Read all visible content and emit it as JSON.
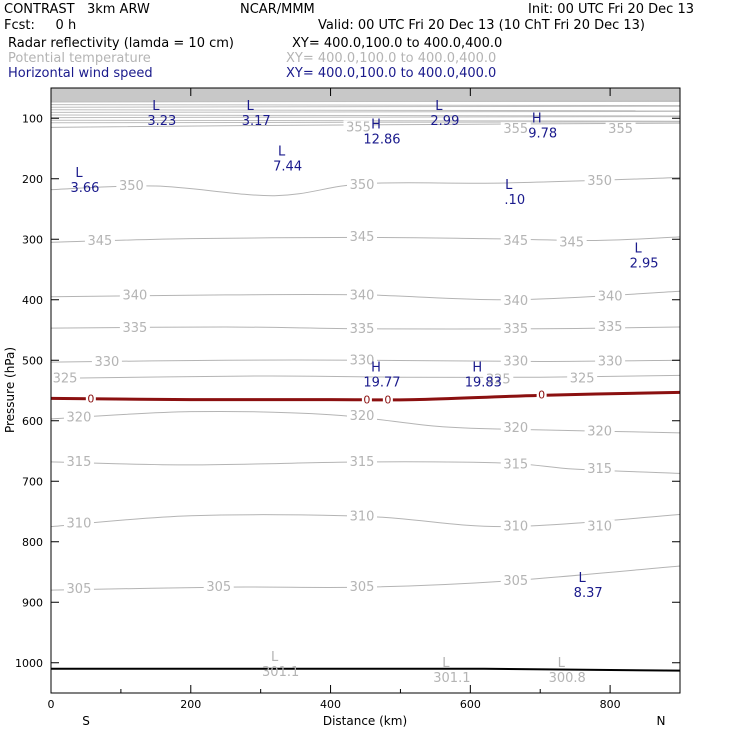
{
  "header": {
    "model": "CONTRAST   3km ARW",
    "institution": "NCAR/MMM",
    "init": "Init: 00 UTC Fri 20 Dec 13",
    "fcst": "Fcst:     0 h",
    "valid": "Valid: 00 UTC Fri 20 Dec 13 (10 ChT Fri 20 Dec 13)",
    "fields": [
      {
        "name": "Radar reflectivity (lamda = 10 cm)",
        "xy": "XY= 400.0,100.0 to 400.0,400.0",
        "color": "#000000"
      },
      {
        "name": "Potential temperature",
        "xy": "XY= 400.0,100.0 to 400.0,400.0",
        "color": "#b4b4b4"
      },
      {
        "name": "Horizontal wind speed",
        "xy": "XY= 400.0,100.0 to 400.0,400.0",
        "color": "#1a1a8c"
      }
    ]
  },
  "chart_data": {
    "type": "line",
    "xlabel": "Distance (km)",
    "ylabel": "Pressure (hPa)",
    "xlim": [
      0,
      900
    ],
    "ylim": [
      1050,
      50
    ],
    "x_ticks": [
      0,
      200,
      400,
      600,
      800
    ],
    "y_ticks": [
      100,
      200,
      300,
      400,
      500,
      600,
      700,
      800,
      900,
      1000
    ],
    "x_end_labels": [
      "S",
      "N"
    ],
    "theta_contours": [
      {
        "value": 355,
        "points": [
          [
            0,
            115
          ],
          [
            300,
            112
          ],
          [
            900,
            108
          ]
        ],
        "labels": [
          [
            440,
            115
          ],
          [
            665,
            118
          ],
          [
            815,
            118
          ]
        ]
      },
      {
        "value": 350,
        "points": [
          [
            0,
            218
          ],
          [
            150,
            212
          ],
          [
            320,
            228
          ],
          [
            450,
            208
          ],
          [
            650,
            207
          ],
          [
            900,
            198
          ]
        ],
        "labels": [
          [
            115,
            212
          ],
          [
            445,
            210
          ],
          [
            785,
            204
          ]
        ]
      },
      {
        "value": 345,
        "points": [
          [
            0,
            305
          ],
          [
            200,
            299
          ],
          [
            450,
            297
          ],
          [
            620,
            299
          ],
          [
            780,
            302
          ],
          [
            900,
            296
          ]
        ],
        "labels": [
          [
            70,
            303
          ],
          [
            445,
            296
          ],
          [
            665,
            303
          ],
          [
            745,
            305
          ]
        ]
      },
      {
        "value": 340,
        "points": [
          [
            0,
            395
          ],
          [
            250,
            392
          ],
          [
            450,
            392
          ],
          [
            660,
            400
          ],
          [
            900,
            386
          ]
        ],
        "labels": [
          [
            120,
            393
          ],
          [
            445,
            393
          ],
          [
            665,
            402
          ],
          [
            800,
            395
          ]
        ]
      },
      {
        "value": 335,
        "points": [
          [
            0,
            447
          ],
          [
            250,
            445
          ],
          [
            450,
            448
          ],
          [
            700,
            448
          ],
          [
            900,
            445
          ]
        ],
        "labels": [
          [
            120,
            447
          ],
          [
            445,
            448
          ],
          [
            665,
            448
          ],
          [
            800,
            445
          ]
        ]
      },
      {
        "value": 330,
        "points": [
          [
            0,
            503
          ],
          [
            250,
            500
          ],
          [
            450,
            500
          ],
          [
            700,
            502
          ],
          [
            900,
            500
          ]
        ],
        "labels": [
          [
            80,
            503
          ],
          [
            445,
            500
          ],
          [
            665,
            502
          ],
          [
            800,
            502
          ]
        ]
      },
      {
        "value": 325,
        "points": [
          [
            0,
            530
          ],
          [
            300,
            526
          ],
          [
            500,
            528
          ],
          [
            700,
            528
          ],
          [
            900,
            525
          ]
        ],
        "labels": [
          [
            20,
            530
          ],
          [
            640,
            532
          ],
          [
            760,
            530
          ]
        ]
      },
      {
        "value": 320,
        "points": [
          [
            0,
            597
          ],
          [
            200,
            585
          ],
          [
            400,
            590
          ],
          [
            560,
            610
          ],
          [
            700,
            615
          ],
          [
            900,
            620
          ]
        ],
        "labels": [
          [
            40,
            595
          ],
          [
            445,
            592
          ],
          [
            665,
            612
          ],
          [
            785,
            618
          ]
        ]
      },
      {
        "value": 315,
        "points": [
          [
            0,
            668
          ],
          [
            200,
            673
          ],
          [
            450,
            668
          ],
          [
            650,
            670
          ],
          [
            750,
            680
          ],
          [
            900,
            687
          ]
        ],
        "labels": [
          [
            40,
            668
          ],
          [
            445,
            668
          ],
          [
            665,
            672
          ],
          [
            785,
            680
          ]
        ]
      },
      {
        "value": 310,
        "points": [
          [
            0,
            775
          ],
          [
            200,
            757
          ],
          [
            450,
            758
          ],
          [
            650,
            775
          ],
          [
            900,
            755
          ]
        ],
        "labels": [
          [
            40,
            770
          ],
          [
            445,
            758
          ],
          [
            665,
            775
          ],
          [
            785,
            775
          ]
        ]
      },
      {
        "value": 305,
        "points": [
          [
            0,
            880
          ],
          [
            250,
            875
          ],
          [
            450,
            875
          ],
          [
            650,
            865
          ],
          [
            900,
            840
          ]
        ],
        "labels": [
          [
            40,
            878
          ],
          [
            240,
            875
          ],
          [
            445,
            875
          ],
          [
            665,
            865
          ]
        ]
      }
    ],
    "reflectivity_contour": {
      "value": 0,
      "points": [
        [
          0,
          563
        ],
        [
          200,
          565
        ],
        [
          400,
          565
        ],
        [
          520,
          565
        ],
        [
          700,
          558
        ],
        [
          900,
          553
        ]
      ],
      "labels": [
        [
          57,
          563
        ],
        [
          452,
          565
        ],
        [
          482,
          565
        ],
        [
          702,
          557
        ]
      ]
    },
    "surface_line": {
      "points": [
        [
          0,
          1010
        ],
        [
          620,
          1010
        ],
        [
          900,
          1013
        ]
      ]
    },
    "extrema": [
      {
        "series": "wind",
        "type": "L",
        "value": "3.23",
        "x": 150,
        "p": 90
      },
      {
        "series": "wind",
        "type": "L",
        "value": "3.17",
        "x": 285,
        "p": 90
      },
      {
        "series": "wind",
        "type": "L",
        "value": "2.99",
        "x": 555,
        "p": 90
      },
      {
        "series": "wind",
        "type": "H",
        "value": "12.86",
        "x": 465,
        "p": 120
      },
      {
        "series": "wind",
        "type": "H",
        "value": "9.78",
        "x": 695,
        "p": 110
      },
      {
        "series": "wind",
        "type": "L",
        "value": "7.44",
        "x": 330,
        "p": 165
      },
      {
        "series": "wind",
        "type": "L",
        "value": "3.66",
        "x": 40,
        "p": 200
      },
      {
        "series": "wind",
        "type": "L",
        "value": ".10",
        "x": 655,
        "p": 220
      },
      {
        "series": "wind",
        "type": "L",
        "value": "2.95",
        "x": 840,
        "p": 325
      },
      {
        "series": "wind",
        "type": "H",
        "value": "19.77",
        "x": 465,
        "p": 522
      },
      {
        "series": "wind",
        "type": "H",
        "value": "19.83",
        "x": 610,
        "p": 522
      },
      {
        "series": "wind",
        "type": "L",
        "value": "8.37",
        "x": 760,
        "p": 870
      },
      {
        "series": "theta",
        "type": "L",
        "value": "301.1",
        "x": 320,
        "p": 1000
      },
      {
        "series": "theta",
        "type": "L",
        "value": "301.1",
        "x": 565,
        "p": 1010
      },
      {
        "series": "theta",
        "type": "L",
        "value": "300.8",
        "x": 730,
        "p": 1010
      }
    ]
  },
  "colors": {
    "theta": "#b4b4b4",
    "wind": "#1a1a8c",
    "reflectivity": "#8b1010",
    "axis": "#000000"
  }
}
